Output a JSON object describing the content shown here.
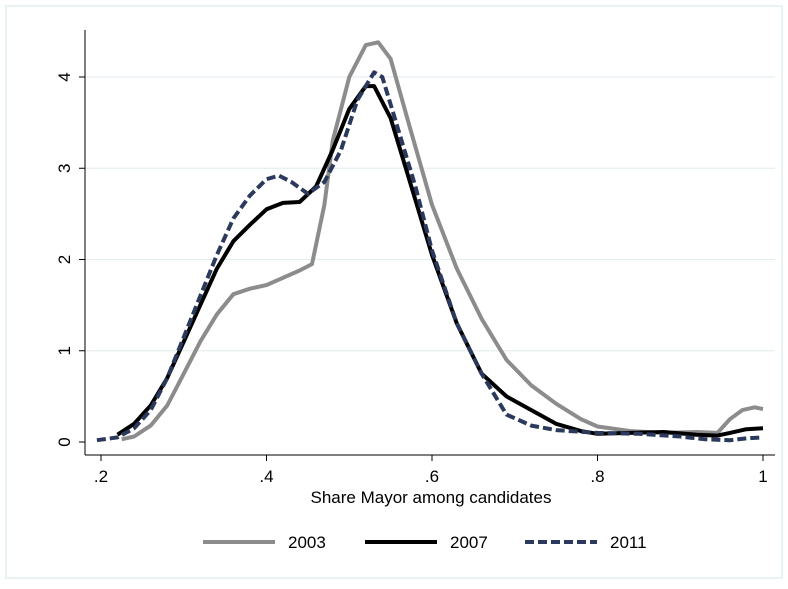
{
  "chart_data": {
    "type": "line",
    "xlabel": "Share Mayor among candidates",
    "ylabel": "",
    "xlim": [
      0.2,
      1.0
    ],
    "ylim": [
      0,
      4.4
    ],
    "xticks": [
      {
        "value": 0.2,
        "label": ".2"
      },
      {
        "value": 0.4,
        "label": ".4"
      },
      {
        "value": 0.6,
        "label": ".6"
      },
      {
        "value": 0.8,
        "label": ".8"
      },
      {
        "value": 1.0,
        "label": "1"
      }
    ],
    "yticks": [
      {
        "value": 0,
        "label": "0"
      },
      {
        "value": 1,
        "label": "1"
      },
      {
        "value": 2,
        "label": "2"
      },
      {
        "value": 3,
        "label": "3"
      },
      {
        "value": 4,
        "label": "4"
      }
    ],
    "grid": "horizontal",
    "legend_position": "bottom",
    "series": [
      {
        "name": "2003",
        "color": "#8c8c8c",
        "style": "solid",
        "points": [
          [
            0.225,
            0.03
          ],
          [
            0.24,
            0.06
          ],
          [
            0.26,
            0.18
          ],
          [
            0.28,
            0.4
          ],
          [
            0.3,
            0.75
          ],
          [
            0.32,
            1.1
          ],
          [
            0.34,
            1.4
          ],
          [
            0.36,
            1.62
          ],
          [
            0.38,
            1.68
          ],
          [
            0.4,
            1.72
          ],
          [
            0.42,
            1.8
          ],
          [
            0.44,
            1.88
          ],
          [
            0.455,
            1.95
          ],
          [
            0.47,
            2.6
          ],
          [
            0.48,
            3.3
          ],
          [
            0.5,
            4.0
          ],
          [
            0.52,
            4.35
          ],
          [
            0.535,
            4.38
          ],
          [
            0.55,
            4.2
          ],
          [
            0.57,
            3.55
          ],
          [
            0.6,
            2.6
          ],
          [
            0.63,
            1.9
          ],
          [
            0.66,
            1.35
          ],
          [
            0.69,
            0.9
          ],
          [
            0.72,
            0.62
          ],
          [
            0.75,
            0.42
          ],
          [
            0.78,
            0.25
          ],
          [
            0.8,
            0.17
          ],
          [
            0.84,
            0.12
          ],
          [
            0.88,
            0.1
          ],
          [
            0.92,
            0.11
          ],
          [
            0.945,
            0.1
          ],
          [
            0.96,
            0.25
          ],
          [
            0.975,
            0.35
          ],
          [
            0.99,
            0.38
          ],
          [
            1.0,
            0.36
          ]
        ]
      },
      {
        "name": "2007",
        "color": "#000000",
        "style": "solid",
        "points": [
          [
            0.22,
            0.08
          ],
          [
            0.24,
            0.2
          ],
          [
            0.26,
            0.4
          ],
          [
            0.28,
            0.7
          ],
          [
            0.3,
            1.1
          ],
          [
            0.32,
            1.5
          ],
          [
            0.34,
            1.9
          ],
          [
            0.36,
            2.2
          ],
          [
            0.38,
            2.38
          ],
          [
            0.4,
            2.55
          ],
          [
            0.42,
            2.62
          ],
          [
            0.44,
            2.63
          ],
          [
            0.46,
            2.8
          ],
          [
            0.48,
            3.2
          ],
          [
            0.5,
            3.65
          ],
          [
            0.52,
            3.9
          ],
          [
            0.53,
            3.9
          ],
          [
            0.55,
            3.55
          ],
          [
            0.57,
            2.95
          ],
          [
            0.6,
            2.05
          ],
          [
            0.63,
            1.3
          ],
          [
            0.66,
            0.75
          ],
          [
            0.69,
            0.5
          ],
          [
            0.72,
            0.35
          ],
          [
            0.75,
            0.2
          ],
          [
            0.78,
            0.12
          ],
          [
            0.8,
            0.09
          ],
          [
            0.84,
            0.1
          ],
          [
            0.88,
            0.11
          ],
          [
            0.92,
            0.08
          ],
          [
            0.945,
            0.07
          ],
          [
            0.96,
            0.1
          ],
          [
            0.98,
            0.14
          ],
          [
            1.0,
            0.15
          ]
        ]
      },
      {
        "name": "2011",
        "color": "#2b3a5c",
        "style": "dashed",
        "points": [
          [
            0.195,
            0.02
          ],
          [
            0.22,
            0.05
          ],
          [
            0.24,
            0.15
          ],
          [
            0.26,
            0.35
          ],
          [
            0.28,
            0.7
          ],
          [
            0.3,
            1.15
          ],
          [
            0.32,
            1.6
          ],
          [
            0.34,
            2.05
          ],
          [
            0.36,
            2.45
          ],
          [
            0.38,
            2.7
          ],
          [
            0.4,
            2.88
          ],
          [
            0.415,
            2.92
          ],
          [
            0.43,
            2.85
          ],
          [
            0.45,
            2.72
          ],
          [
            0.47,
            2.85
          ],
          [
            0.49,
            3.2
          ],
          [
            0.51,
            3.75
          ],
          [
            0.53,
            4.05
          ],
          [
            0.54,
            4.0
          ],
          [
            0.56,
            3.4
          ],
          [
            0.58,
            2.8
          ],
          [
            0.6,
            2.1
          ],
          [
            0.63,
            1.3
          ],
          [
            0.66,
            0.75
          ],
          [
            0.69,
            0.3
          ],
          [
            0.72,
            0.18
          ],
          [
            0.75,
            0.13
          ],
          [
            0.8,
            0.1
          ],
          [
            0.85,
            0.09
          ],
          [
            0.9,
            0.06
          ],
          [
            0.93,
            0.03
          ],
          [
            0.96,
            0.02
          ],
          [
            0.98,
            0.04
          ],
          [
            1.0,
            0.05
          ]
        ]
      }
    ]
  }
}
